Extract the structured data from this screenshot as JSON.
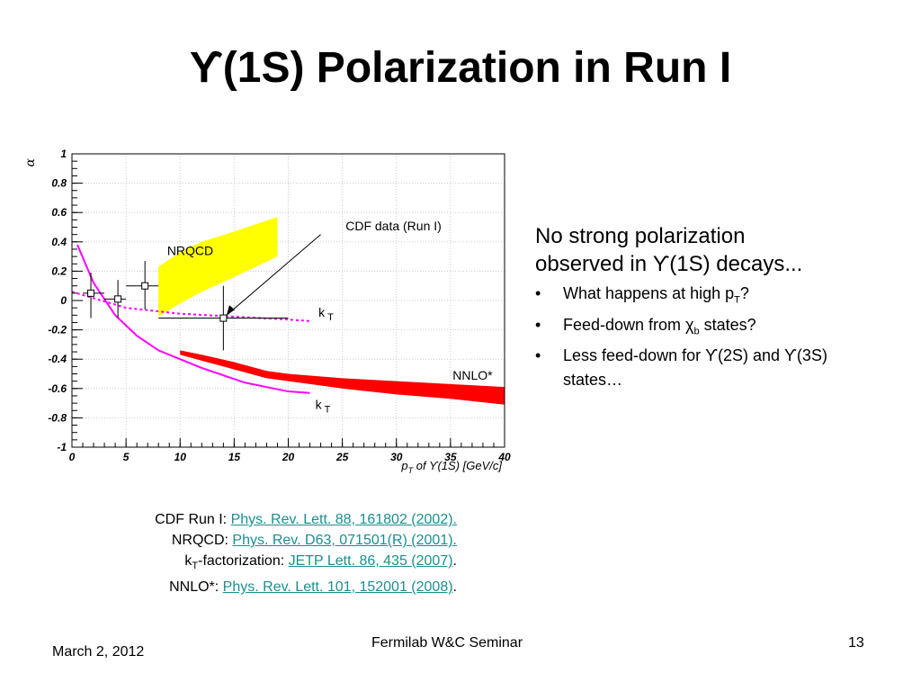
{
  "slide": {
    "title": "ϒ(1S) Polarization in Run I",
    "notes": {
      "lead_1": "No strong polarization",
      "lead_2": "observed in ϒ(1S) decays...",
      "bullets": [
        {
          "pre": "What happens at high p",
          "sub": "T",
          "post": "?"
        },
        {
          "pre": "Feed-down from χ",
          "sub": "b",
          "post": " states?"
        },
        {
          "pre": "Less feed-down for ϒ(2S) and ϒ(3S) states…",
          "sub": "",
          "post": ""
        }
      ],
      "bullet_symbol": "•"
    },
    "references": [
      {
        "label": "CDF Run I:  ",
        "label_sub": "",
        "label_post": "",
        "link": "Phys. Rev. Lett. 88, 161802 (2002).",
        "tail": ""
      },
      {
        "label": "NRQCD:  ",
        "label_sub": "",
        "label_post": "",
        "link": "Phys. Rev. D63, 071501(R) (2001).",
        "tail": ""
      },
      {
        "label": "k",
        "label_sub": "T",
        "label_post": "-factorization:  ",
        "link": "JETP Lett. 86, 435 (2007)",
        "tail": "."
      },
      {
        "label": "NNLO*: ",
        "label_sub": "",
        "label_post": "",
        "link": "Phys. Rev. Lett. 101, 152001 (2008)",
        "tail": "."
      }
    ],
    "footer": {
      "date": "March 2, 2012",
      "seminar": "Fermilab W&C Seminar",
      "page": "13"
    }
  },
  "chart_data": {
    "type": "line",
    "ylabel": "α",
    "xlabel": "p",
    "xlabel_sub": "T",
    "xlabel_post": " of ϒ(1S) [GeV/c]",
    "xlim": [
      0,
      40
    ],
    "ylim": [
      -1,
      1
    ],
    "xticks": [
      "0",
      "5",
      "10",
      "15",
      "20",
      "25",
      "30",
      "35",
      "40"
    ],
    "yticks": [
      "1",
      "0.8",
      "0.6",
      "0.4",
      "0.2",
      "0",
      "-0.2",
      "-0.4",
      "-0.6",
      "-0.8",
      "-1"
    ],
    "grid": true,
    "colors": {
      "data": "#000000",
      "nrqcd": "#ffff00",
      "kt": "#ff00ff",
      "nnlo": "#ff0000",
      "grid": "#cccccc"
    },
    "annotations": {
      "cdf": "CDF data (Run I)",
      "nrqcd": "NRQCD",
      "kt_upper": "k",
      "kt_lower": "k",
      "kt_sub": "T",
      "nnlo": "NNLO*"
    },
    "series": [
      {
        "name": "CDF data (Run I)",
        "kind": "points",
        "points": [
          {
            "x": 1.75,
            "y": 0.05,
            "xlo": 1.0,
            "xhi": 3.0,
            "ylo": -0.12,
            "yhi": 0.19
          },
          {
            "x": 4.25,
            "y": 0.01,
            "xlo": 3.0,
            "xhi": 5.0,
            "ylo": -0.12,
            "yhi": 0.14
          },
          {
            "x": 6.75,
            "y": 0.1,
            "xlo": 5.0,
            "xhi": 8.0,
            "ylo": -0.06,
            "yhi": 0.27
          },
          {
            "x": 14.0,
            "y": -0.12,
            "xlo": 8.0,
            "xhi": 20.0,
            "ylo": -0.34,
            "yhi": 0.1
          }
        ]
      },
      {
        "name": "NRQCD",
        "kind": "band",
        "x": [
          8,
          10,
          12,
          15,
          19
        ],
        "upper": [
          0.23,
          0.33,
          0.4,
          0.47,
          0.57
        ],
        "lower": [
          -0.11,
          -0.02,
          0.06,
          0.16,
          0.3
        ]
      },
      {
        "name": "k_T (upper)",
        "kind": "dashed",
        "x": [
          0,
          5,
          10,
          15,
          20,
          22
        ],
        "y": [
          0.06,
          -0.05,
          -0.09,
          -0.11,
          -0.13,
          -0.14
        ]
      },
      {
        "name": "k_T (lower)",
        "kind": "solid",
        "x": [
          0.5,
          2,
          4,
          6,
          8,
          10,
          12,
          14,
          16,
          18,
          20,
          22
        ],
        "y": [
          0.38,
          0.12,
          -0.1,
          -0.24,
          -0.34,
          -0.4,
          -0.46,
          -0.51,
          -0.56,
          -0.59,
          -0.62,
          -0.63
        ]
      },
      {
        "name": "NNLO*",
        "kind": "band",
        "x": [
          10,
          12,
          15,
          18,
          20,
          25,
          30,
          35,
          40
        ],
        "upper": [
          -0.34,
          -0.37,
          -0.42,
          -0.48,
          -0.5,
          -0.53,
          -0.55,
          -0.57,
          -0.59
        ],
        "lower": [
          -0.37,
          -0.41,
          -0.47,
          -0.53,
          -0.55,
          -0.6,
          -0.64,
          -0.67,
          -0.71
        ]
      }
    ]
  }
}
